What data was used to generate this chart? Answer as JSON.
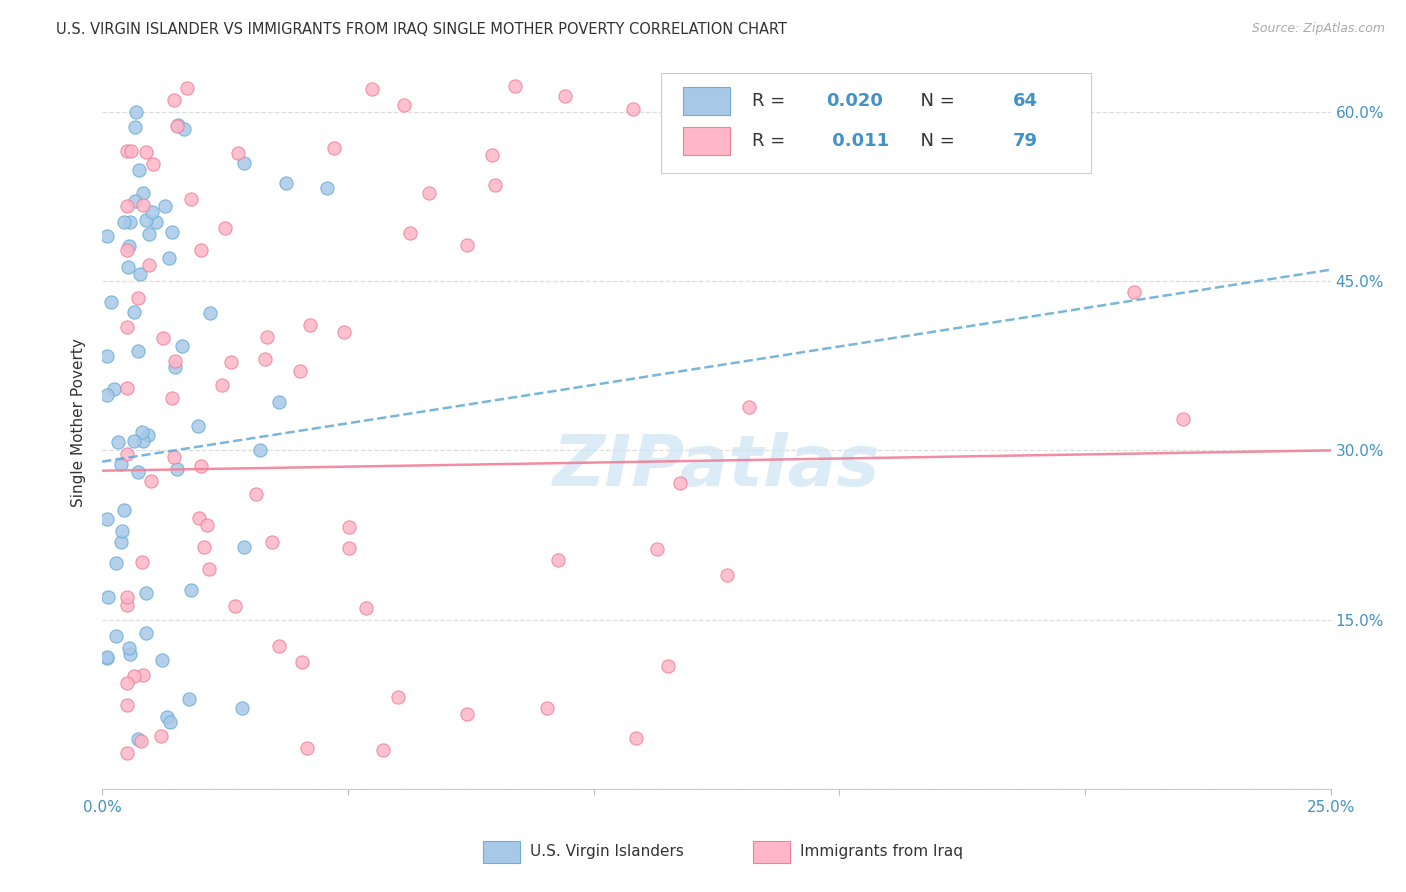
{
  "title": "U.S. VIRGIN ISLANDER VS IMMIGRANTS FROM IRAQ SINGLE MOTHER POVERTY CORRELATION CHART",
  "source": "Source: ZipAtlas.com",
  "ylabel": "Single Mother Poverty",
  "legend_label1": "U.S. Virgin Islanders",
  "legend_label2": "Immigrants from Iraq",
  "R1": "0.020",
  "N1": "64",
  "R2": "0.011",
  "N2": "79",
  "color_blue_fill": "#a8c8e8",
  "color_blue_edge": "#6baed6",
  "color_pink_fill": "#ffb6c8",
  "color_pink_edge": "#f08098",
  "color_blue_line": "#6baed6",
  "color_pink_line": "#f08098",
  "color_blue_text": "#4292c6",
  "color_dark_text": "#333333",
  "color_source": "#aaaaaa",
  "color_grid": "#dddddd",
  "color_bg": "#ffffff",
  "xlim": [
    0.0,
    0.25
  ],
  "ylim": [
    0.0,
    0.65
  ],
  "blue_line_x": [
    0.0,
    0.25
  ],
  "blue_line_y": [
    0.29,
    0.46
  ],
  "pink_line_x": [
    0.0,
    0.25
  ],
  "pink_line_y": [
    0.282,
    0.3
  ],
  "watermark_text": "ZIPatlas",
  "watermark_color": "#cce5f5",
  "x_tick_positions": [
    0.0,
    0.05,
    0.1,
    0.15,
    0.2,
    0.25
  ],
  "x_tick_labels": [
    "0.0%",
    "",
    "",
    "",
    "",
    "25.0%"
  ],
  "y_tick_positions": [
    0.0,
    0.15,
    0.3,
    0.45,
    0.6
  ],
  "y_right_labels": [
    "",
    "15.0%",
    "30.0%",
    "45.0%",
    "60.0%"
  ]
}
